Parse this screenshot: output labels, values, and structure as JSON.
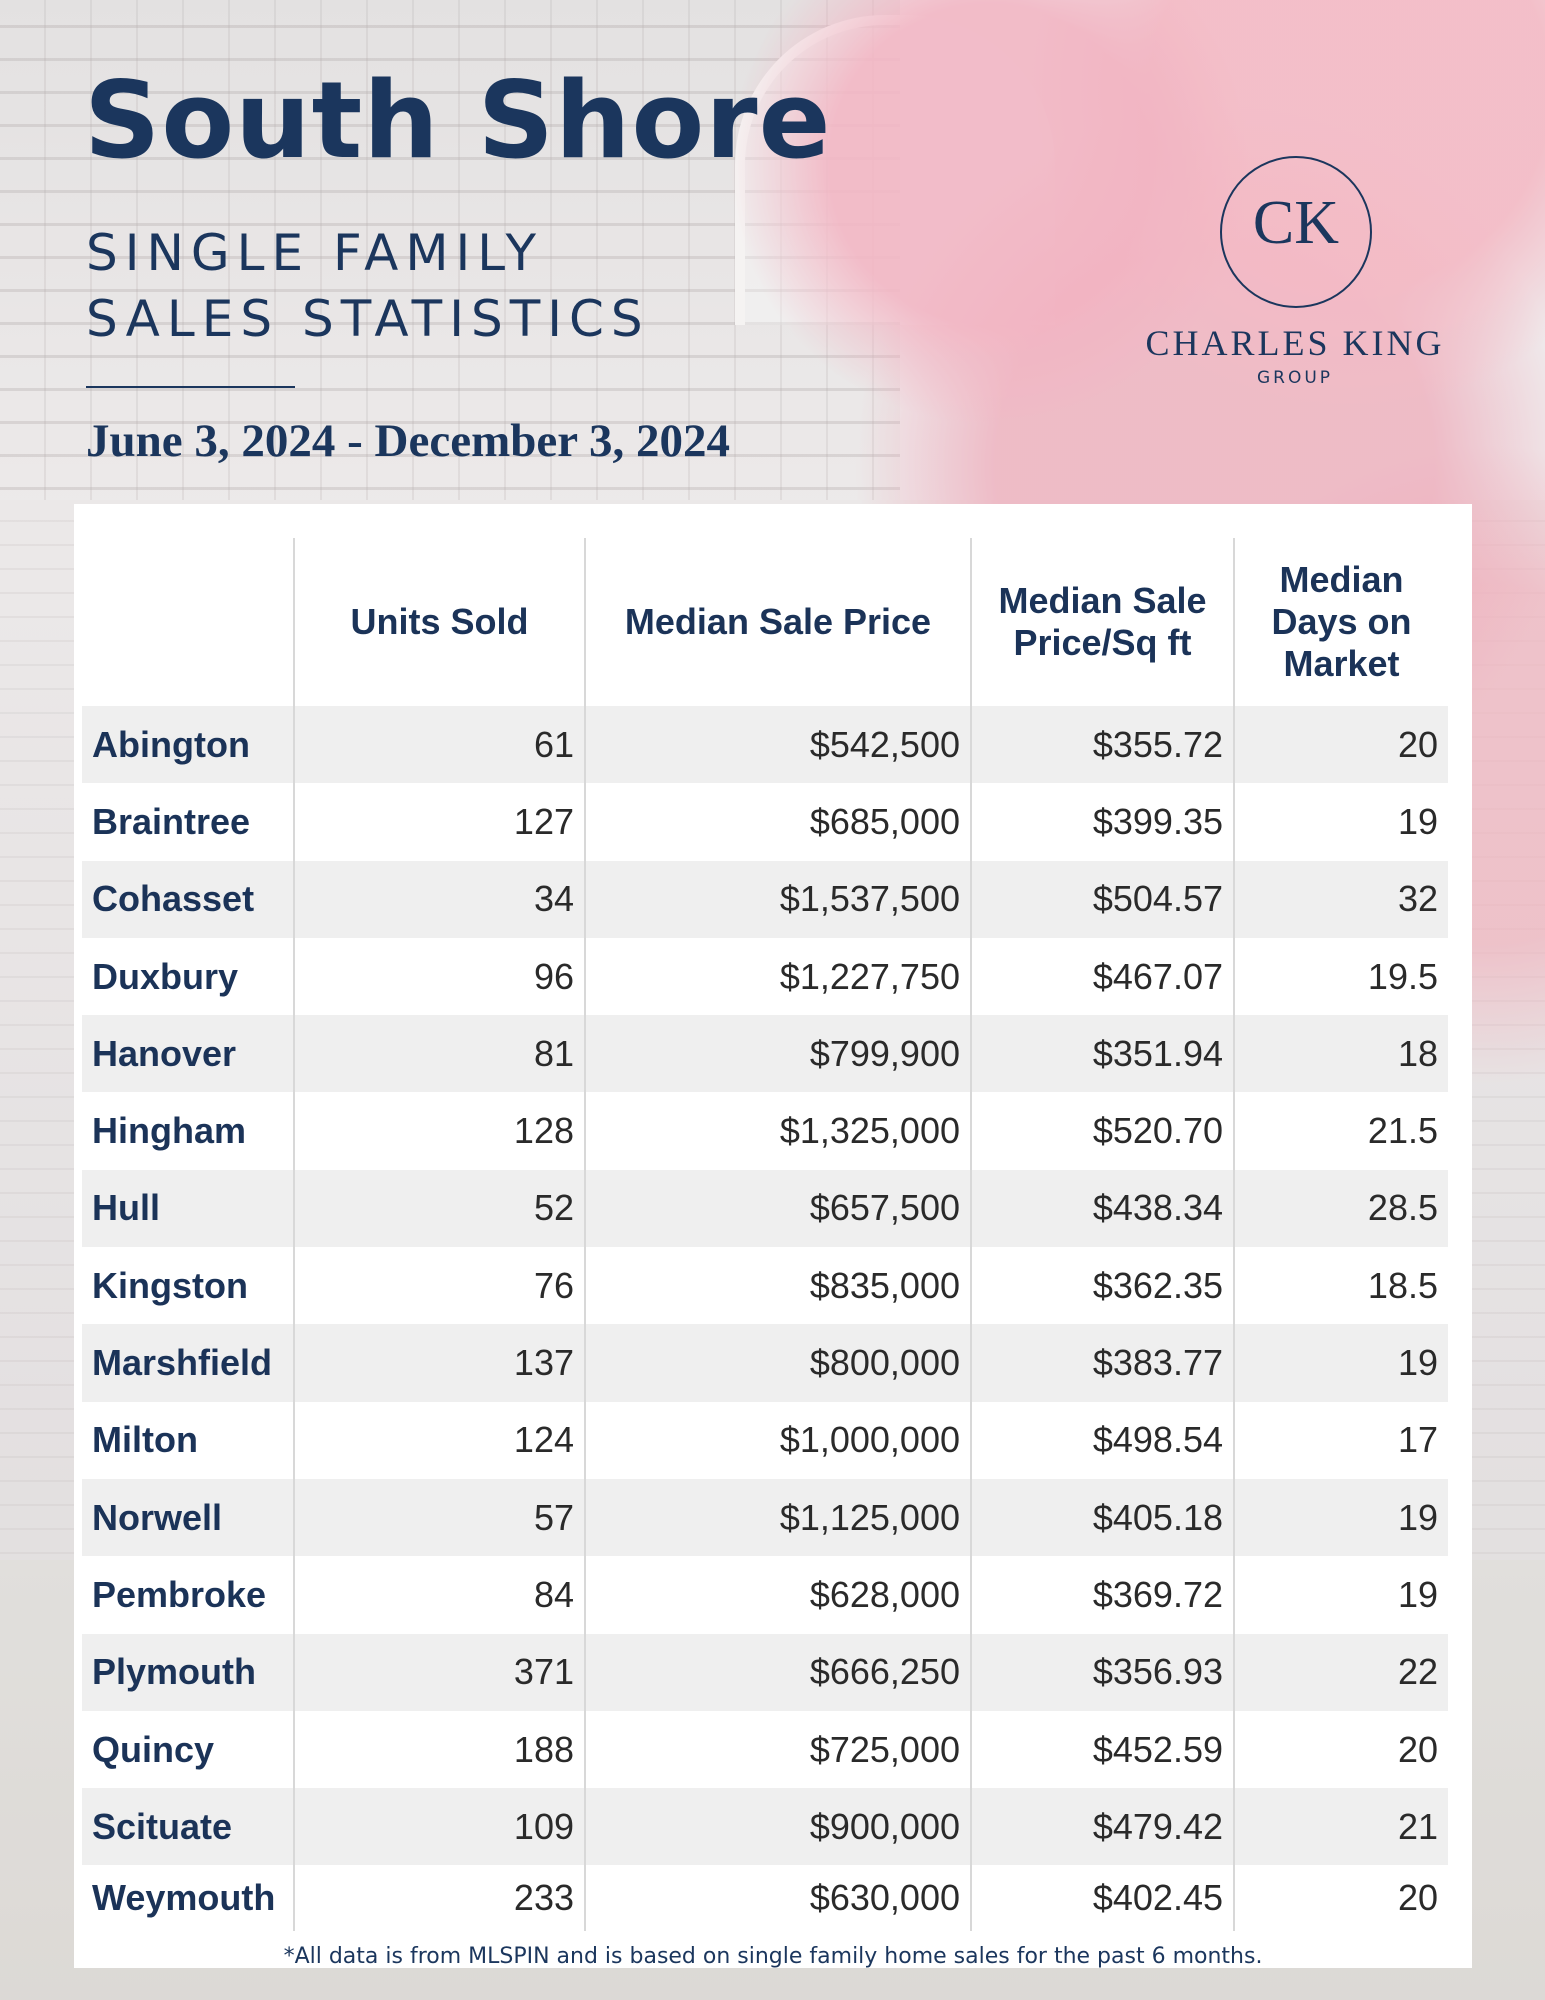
{
  "header": {
    "title": "South Shore",
    "subtitle_line1": "SINGLE FAMILY",
    "subtitle_line2": "SALES STATISTICS",
    "date_range": "June 3, 2024 - December 3, 2024"
  },
  "logo": {
    "monogram": "CK",
    "name": "CHARLES KING",
    "group": "GROUP"
  },
  "table": {
    "columns": {
      "units": "Units Sold",
      "median_price": "Median Sale Price",
      "price_sqft_line1": "Median Sale",
      "price_sqft_line2": "Price/Sq ft",
      "dom_line1": "Median",
      "dom_line2": "Days on",
      "dom_line3": "Market"
    },
    "rows": [
      {
        "town": "Abington",
        "units": "61",
        "price": "$542,500",
        "sqft": "$355.72",
        "dom": "20"
      },
      {
        "town": "Braintree",
        "units": "127",
        "price": "$685,000",
        "sqft": "$399.35",
        "dom": "19"
      },
      {
        "town": "Cohasset",
        "units": "34",
        "price": "$1,537,500",
        "sqft": "$504.57",
        "dom": "32"
      },
      {
        "town": "Duxbury",
        "units": "96",
        "price": "$1,227,750",
        "sqft": "$467.07",
        "dom": "19.5"
      },
      {
        "town": "Hanover",
        "units": "81",
        "price": "$799,900",
        "sqft": "$351.94",
        "dom": "18"
      },
      {
        "town": "Hingham",
        "units": "128",
        "price": "$1,325,000",
        "sqft": "$520.70",
        "dom": "21.5"
      },
      {
        "town": "Hull",
        "units": "52",
        "price": "$657,500",
        "sqft": "$438.34",
        "dom": "28.5"
      },
      {
        "town": "Kingston",
        "units": "76",
        "price": "$835,000",
        "sqft": "$362.35",
        "dom": "18.5"
      },
      {
        "town": "Marshfield",
        "units": "137",
        "price": "$800,000",
        "sqft": "$383.77",
        "dom": "19"
      },
      {
        "town": "Milton",
        "units": "124",
        "price": "$1,000,000",
        "sqft": "$498.54",
        "dom": "17"
      },
      {
        "town": "Norwell",
        "units": "57",
        "price": "$1,125,000",
        "sqft": "$405.18",
        "dom": "19"
      },
      {
        "town": "Pembroke",
        "units": "84",
        "price": "$628,000",
        "sqft": "$369.72",
        "dom": "19"
      },
      {
        "town": "Plymouth",
        "units": "371",
        "price": "$666,250",
        "sqft": "$356.93",
        "dom": "22"
      },
      {
        "town": "Quincy",
        "units": "188",
        "price": "$725,000",
        "sqft": "$452.59",
        "dom": "20"
      },
      {
        "town": "Scituate",
        "units": "109",
        "price": "$900,000",
        "sqft": "$479.42",
        "dom": "21"
      },
      {
        "town": "Weymouth",
        "units": "233",
        "price": "$630,000",
        "sqft": "$402.45",
        "dom": "20"
      }
    ]
  },
  "footnote": "*All data is from MLSPIN and is based on single family home sales for the past 6 months.",
  "colors": {
    "navy": "#1b365d",
    "row_stripe": "#efefef"
  }
}
